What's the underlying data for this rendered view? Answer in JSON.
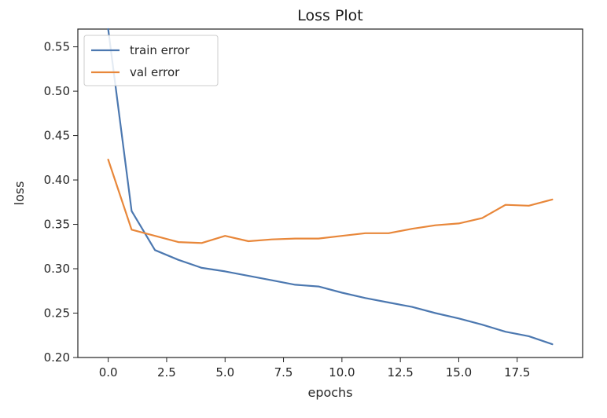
{
  "chart_data": {
    "type": "line",
    "title": "Loss Plot",
    "xlabel": "epochs",
    "ylabel": "loss",
    "xlim": [
      -1.3,
      20.3
    ],
    "ylim": [
      0.2,
      0.57
    ],
    "grid": false,
    "legend_position": "top-left",
    "x_ticks": [
      0.0,
      2.5,
      5.0,
      7.5,
      10.0,
      12.5,
      15.0,
      17.5
    ],
    "x_tick_labels": [
      "0.0",
      "2.5",
      "5.0",
      "7.5",
      "10.0",
      "12.5",
      "15.0",
      "17.5"
    ],
    "y_ticks": [
      0.2,
      0.25,
      0.3,
      0.35,
      0.4,
      0.45,
      0.5,
      0.55
    ],
    "y_tick_labels": [
      "0.20",
      "0.25",
      "0.30",
      "0.35",
      "0.40",
      "0.45",
      "0.50",
      "0.55"
    ],
    "x": [
      0,
      1,
      2,
      3,
      4,
      5,
      6,
      7,
      8,
      9,
      10,
      11,
      12,
      13,
      14,
      15,
      16,
      17,
      18,
      19
    ],
    "series": [
      {
        "name": "train error",
        "color": "#4c78b0",
        "values": [
          0.57,
          0.365,
          0.321,
          0.31,
          0.301,
          0.297,
          0.292,
          0.287,
          0.282,
          0.28,
          0.273,
          0.267,
          0.262,
          0.257,
          0.25,
          0.244,
          0.237,
          0.229,
          0.224,
          0.215
        ]
      },
      {
        "name": "val error",
        "color": "#e8873a",
        "values": [
          0.423,
          0.344,
          0.337,
          0.33,
          0.329,
          0.337,
          0.331,
          0.333,
          0.334,
          0.334,
          0.337,
          0.34,
          0.34,
          0.345,
          0.349,
          0.351,
          0.357,
          0.372,
          0.371,
          0.378
        ]
      }
    ]
  }
}
